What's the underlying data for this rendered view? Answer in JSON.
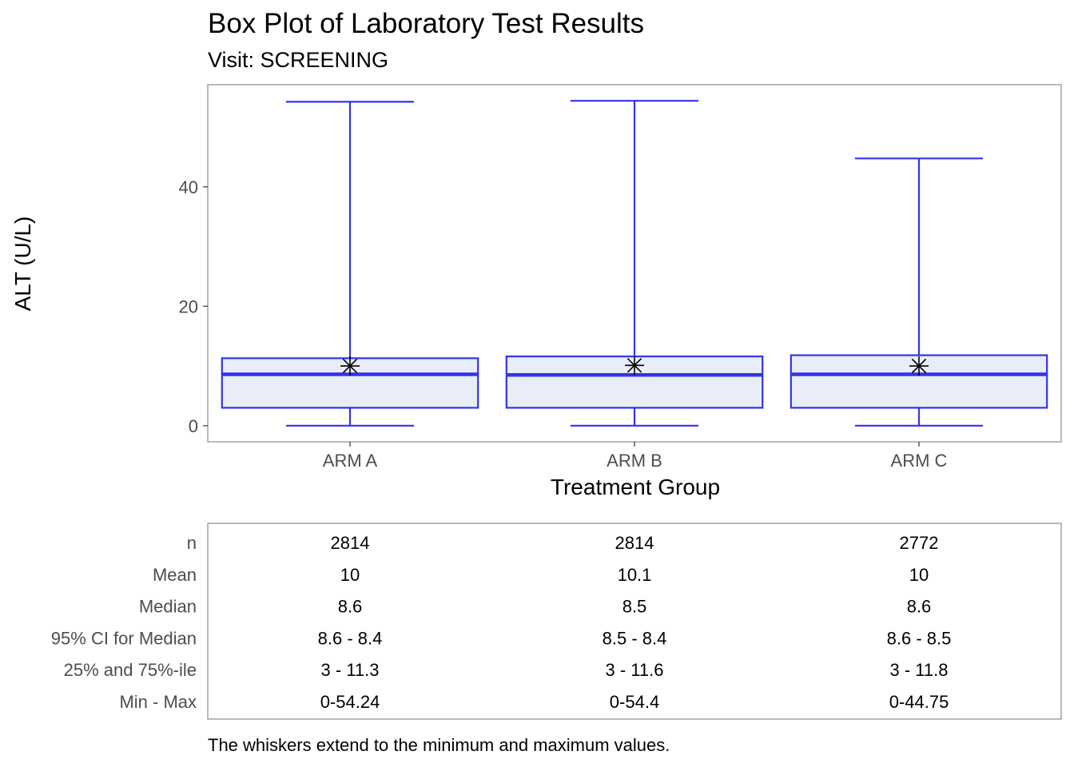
{
  "chart_data": {
    "type": "box",
    "title": "Box Plot of Laboratory Test Results",
    "subtitle": "Visit: SCREENING",
    "xlabel": "Treatment Group",
    "ylabel": "ALT (U/L)",
    "categories": [
      "ARM A",
      "ARM B",
      "ARM C"
    ],
    "y_ticks": [
      0,
      20,
      40
    ],
    "ylim": [
      -2.7,
      57.1
    ],
    "grid": false,
    "colors": {
      "box_stroke": "#3333ee",
      "box_fill": "#e8edf7",
      "mean_marker": "#000000",
      "panel_border": "#8c8c8c"
    },
    "boxes": [
      {
        "category": "ARM A",
        "min": 0,
        "q1": 3,
        "median": 8.6,
        "mean": 10,
        "q3": 11.3,
        "max": 54.24
      },
      {
        "category": "ARM B",
        "min": 0,
        "q1": 3,
        "median": 8.5,
        "mean": 10.1,
        "q3": 11.6,
        "max": 54.4
      },
      {
        "category": "ARM C",
        "min": 0,
        "q1": 3,
        "median": 8.6,
        "mean": 10,
        "q3": 11.8,
        "max": 44.75
      }
    ]
  },
  "stats_table": {
    "row_labels": [
      "n",
      "Mean",
      "Median",
      "95% CI for Median",
      "25% and 75%-ile",
      "Min - Max"
    ],
    "columns": [
      {
        "group": "ARM A",
        "cells": [
          "2814",
          "10",
          "8.6",
          "8.6 - 8.4",
          "3 - 11.3",
          "0-54.24"
        ]
      },
      {
        "group": "ARM B",
        "cells": [
          "2814",
          "10.1",
          "8.5",
          "8.5 - 8.4",
          "3 - 11.6",
          "0-54.4"
        ]
      },
      {
        "group": "ARM C",
        "cells": [
          "2772",
          "10",
          "8.6",
          "8.6 - 8.5",
          "3 - 11.8",
          "0-44.75"
        ]
      }
    ]
  },
  "caption": "The whiskers extend to the minimum and maximum values."
}
